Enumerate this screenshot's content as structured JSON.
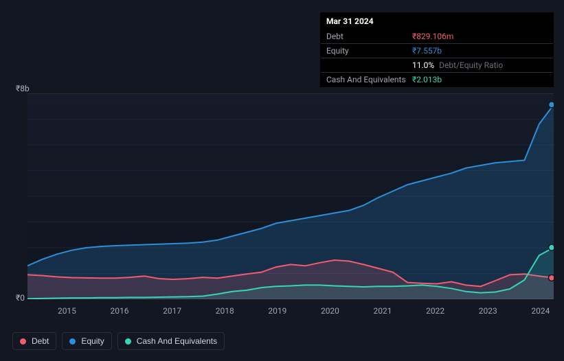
{
  "tooltip": {
    "date": "Mar 31 2024",
    "rows": [
      {
        "label": "Debt",
        "value": "₹829.106m",
        "color": "#f45b6f",
        "extra": ""
      },
      {
        "label": "Equity",
        "value": "₹7.557b",
        "color": "#2b8fd9",
        "extra": ""
      },
      {
        "label": "",
        "value": "11.0%",
        "color": "#ffffff",
        "extra": "Debt/Equity Ratio"
      },
      {
        "label": "Cash And Equivalents",
        "value": "₹2.013b",
        "color": "#35d6b6",
        "extra": ""
      }
    ]
  },
  "chart": {
    "type": "area-line",
    "background": "#131722",
    "plot_bg_top": "#161b29",
    "plot_bg_bot": "#0f1420",
    "grid_color": "#1e2330",
    "baseline_color": "#2a2e39",
    "ymax_value": 8,
    "ymax_label": "₹8b",
    "ymin_label": "₹0",
    "xticks": [
      "2015",
      "2016",
      "2017",
      "2018",
      "2019",
      "2020",
      "2021",
      "2022",
      "2023",
      "2024"
    ],
    "xtick_pos": [
      0.075,
      0.175,
      0.275,
      0.375,
      0.475,
      0.575,
      0.675,
      0.775,
      0.875,
      0.975
    ],
    "series": {
      "debt": {
        "label": "Debt",
        "color": "#f45b6f",
        "fill": "rgba(244,91,111,0.18)",
        "pts": [
          0.95,
          0.92,
          0.87,
          0.84,
          0.83,
          0.82,
          0.82,
          0.85,
          0.9,
          0.8,
          0.77,
          0.8,
          0.85,
          0.82,
          0.9,
          0.98,
          1.05,
          1.25,
          1.35,
          1.3,
          1.42,
          1.52,
          1.48,
          1.35,
          1.2,
          1.05,
          0.65,
          0.62,
          0.6,
          0.68,
          0.55,
          0.5,
          0.72,
          0.95,
          0.98,
          0.9,
          0.83
        ]
      },
      "equity": {
        "label": "Equity",
        "color": "#2b8fd9",
        "fill": "rgba(43,143,217,0.22)",
        "pts": [
          1.3,
          1.55,
          1.75,
          1.9,
          2.0,
          2.05,
          2.08,
          2.1,
          2.12,
          2.14,
          2.16,
          2.18,
          2.22,
          2.3,
          2.45,
          2.6,
          2.75,
          2.95,
          3.05,
          3.15,
          3.25,
          3.35,
          3.45,
          3.65,
          3.95,
          4.2,
          4.45,
          4.6,
          4.75,
          4.9,
          5.1,
          5.2,
          5.3,
          5.35,
          5.4,
          6.8,
          7.56
        ]
      },
      "cash": {
        "label": "Cash And Equivalents",
        "color": "#35d6b6",
        "fill": "rgba(53,214,182,0.14)",
        "pts": [
          0.02,
          0.03,
          0.04,
          0.05,
          0.05,
          0.06,
          0.06,
          0.07,
          0.07,
          0.08,
          0.09,
          0.1,
          0.12,
          0.2,
          0.3,
          0.35,
          0.45,
          0.5,
          0.52,
          0.55,
          0.55,
          0.52,
          0.5,
          0.48,
          0.5,
          0.5,
          0.52,
          0.55,
          0.5,
          0.42,
          0.3,
          0.25,
          0.28,
          0.4,
          0.75,
          1.7,
          2.01
        ]
      }
    },
    "end_markers": [
      {
        "series": "equity",
        "color": "#2b8fd9"
      },
      {
        "series": "cash",
        "color": "#35d6b6"
      },
      {
        "series": "debt",
        "color": "#f45b6f"
      }
    ]
  },
  "legend": [
    {
      "label": "Debt",
      "color": "#f45b6f",
      "key": "debt"
    },
    {
      "label": "Equity",
      "color": "#2b8fd9",
      "key": "equity"
    },
    {
      "label": "Cash And Equivalents",
      "color": "#35d6b6",
      "key": "cash"
    }
  ]
}
